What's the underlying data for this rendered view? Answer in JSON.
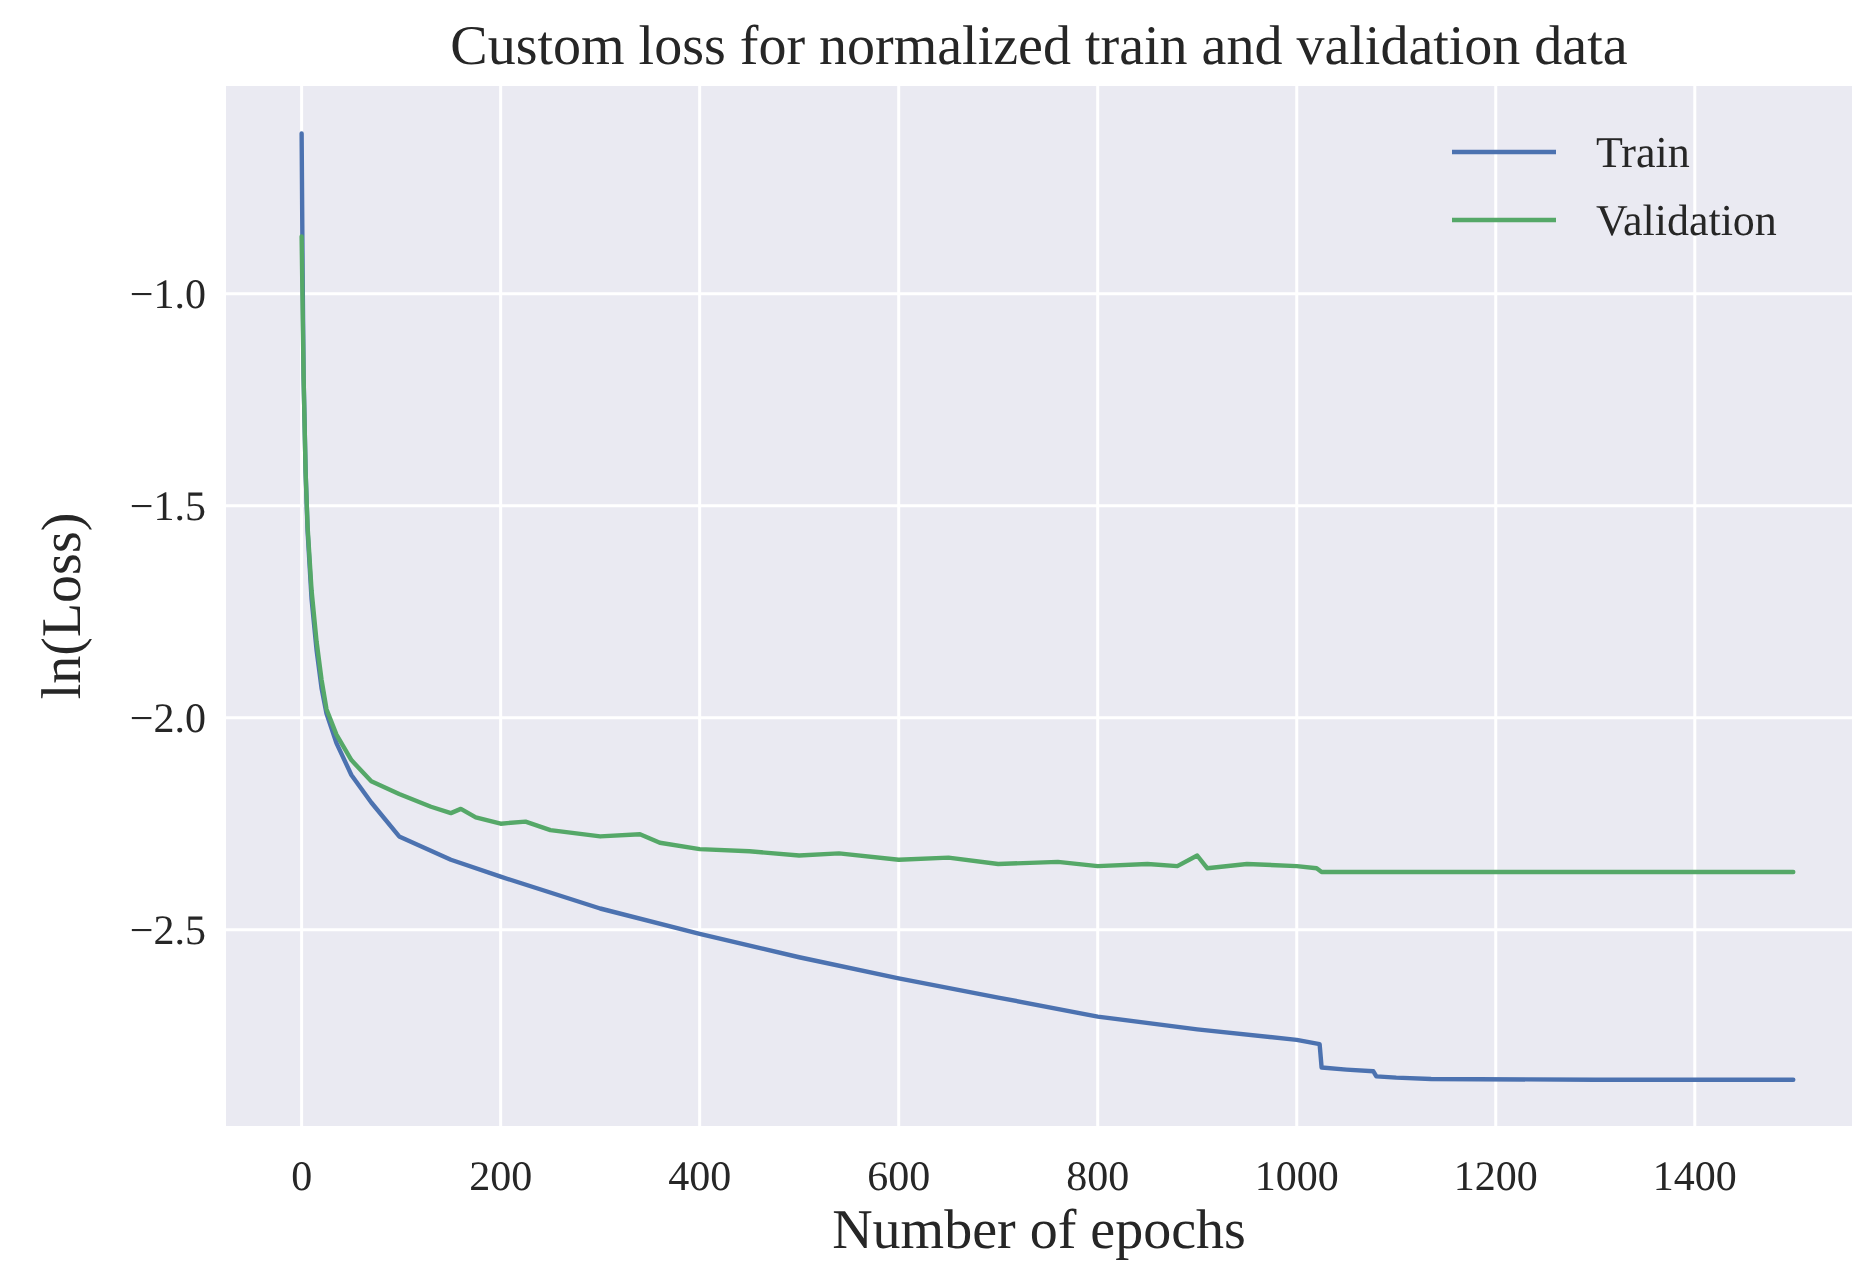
{
  "chart_data": {
    "type": "line",
    "title": "Custom loss for normalized train and validation data",
    "xlabel": "Number of epochs",
    "ylabel": "ln(Loss)",
    "xlim": [
      -76,
      1558
    ],
    "xticks": [
      0,
      200,
      400,
      600,
      800,
      1000,
      1200,
      1400
    ],
    "ylim": [
      -2.963,
      -0.51
    ],
    "yticks": [
      {
        "value": -2.5,
        "label": "−2.5"
      },
      {
        "value": -2.0,
        "label": "−2.0"
      },
      {
        "value": -1.5,
        "label": "−1.5"
      },
      {
        "value": -1.0,
        "label": "−1.0"
      }
    ],
    "grid": true,
    "legend": "top right",
    "marker": "none",
    "line_style": "solid",
    "series": [
      {
        "name": "Train",
        "color": "#4c72b0",
        "x": [
          0,
          1,
          2,
          4,
          6,
          10,
          15,
          20,
          25,
          35,
          50,
          70,
          98,
          150,
          200,
          300,
          400,
          500,
          600,
          700,
          800,
          900,
          1000,
          1023,
          1025,
          1050,
          1077,
          1080,
          1100,
          1135,
          1300,
          1499
        ],
        "values": [
          -0.622,
          -0.95,
          -1.2,
          -1.42,
          -1.56,
          -1.72,
          -1.84,
          -1.93,
          -1.99,
          -2.06,
          -2.135,
          -2.2,
          -2.28,
          -2.335,
          -2.375,
          -2.45,
          -2.51,
          -2.565,
          -2.615,
          -2.66,
          -2.705,
          -2.735,
          -2.76,
          -2.77,
          -2.825,
          -2.83,
          -2.834,
          -2.846,
          -2.849,
          -2.852,
          -2.854,
          -2.854
        ]
      },
      {
        "name": "Validation",
        "color": "#55a868",
        "x": [
          0,
          2,
          4,
          6,
          10,
          15,
          20,
          25,
          35,
          50,
          70,
          98,
          130,
          150,
          160,
          175,
          200,
          225,
          250,
          300,
          340,
          360,
          400,
          450,
          500,
          540,
          600,
          650,
          700,
          760,
          800,
          850,
          880,
          900,
          910,
          950,
          1000,
          1020,
          1025,
          1499
        ],
        "values": [
          -0.865,
          -1.2,
          -1.42,
          -1.55,
          -1.7,
          -1.82,
          -1.91,
          -1.98,
          -2.04,
          -2.1,
          -2.15,
          -2.18,
          -2.21,
          -2.225,
          -2.215,
          -2.235,
          -2.25,
          -2.245,
          -2.265,
          -2.28,
          -2.275,
          -2.295,
          -2.31,
          -2.315,
          -2.325,
          -2.32,
          -2.335,
          -2.33,
          -2.345,
          -2.34,
          -2.35,
          -2.345,
          -2.35,
          -2.325,
          -2.355,
          -2.345,
          -2.35,
          -2.355,
          -2.364,
          -2.364
        ]
      }
    ]
  }
}
